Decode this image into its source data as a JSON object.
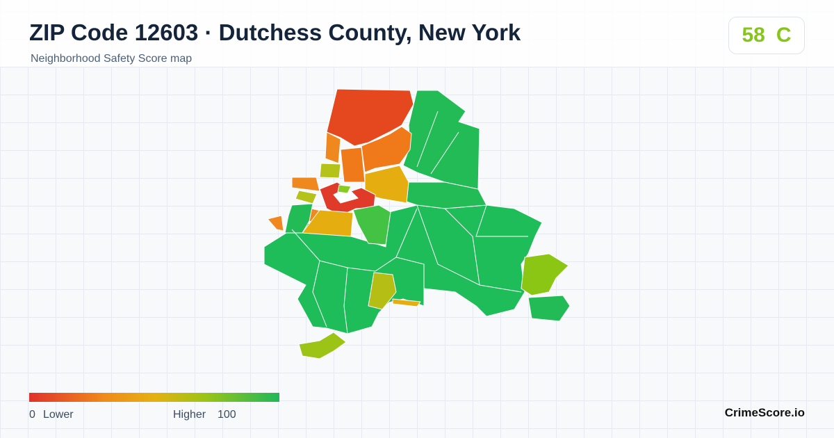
{
  "header": {
    "title": "ZIP Code 12603 · Dutchess County, New York",
    "subtitle": "Neighborhood Safety Score map"
  },
  "score": {
    "value": 58,
    "grade": "C"
  },
  "legend": {
    "min": 0,
    "min_label": "Lower",
    "max_label": "Higher",
    "max": 100
  },
  "brand": "CrimeScore.io"
}
